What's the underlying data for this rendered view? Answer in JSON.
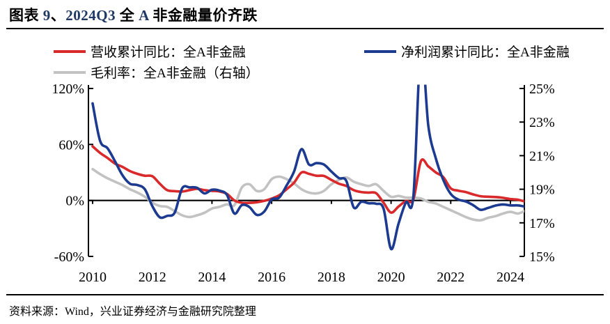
{
  "palette": {
    "text": "#000000",
    "accent_text": "#1F3864",
    "red": "#D9292B",
    "blue": "#1C3A90",
    "gray": "#C2C2C2",
    "axis": "#000000"
  },
  "title": {
    "parts": [
      {
        "text": "图表 ",
        "accent": false
      },
      {
        "text": "9",
        "accent": true
      },
      {
        "text": "、",
        "accent": false
      },
      {
        "text": "2024Q3",
        "accent": true
      },
      {
        "text": " 全 ",
        "accent": false
      },
      {
        "text": "A",
        "accent": true
      },
      {
        "text": " 非金融量价齐跌",
        "accent": false
      }
    ]
  },
  "legend": [
    {
      "label": "营收累计同比：全A非金融",
      "color": "#D9292B"
    },
    {
      "label": "净利润累计同比：全A非金融",
      "color": "#1C3A90"
    },
    {
      "label": "毛利率：全A非金融（右轴）",
      "color": "#C2C2C2"
    }
  ],
  "source": "资料来源：Wind，兴业证券经济与金融研究院整理",
  "chart_data": {
    "type": "line",
    "x_start": 2010,
    "x_step": 0.25,
    "x_axis": {
      "ticks": [
        2010,
        2012,
        2014,
        2016,
        2018,
        2020,
        2022,
        2024
      ],
      "lim": [
        2009.85,
        2024.5
      ]
    },
    "left_axis": {
      "ticks": [
        "120%",
        "60%",
        "0%",
        "-60%"
      ],
      "lim": [
        -60,
        120
      ]
    },
    "right_axis": {
      "ticks": [
        "25%",
        "23%",
        "21%",
        "19%",
        "17%",
        "15%"
      ],
      "lim": [
        15,
        25
      ]
    },
    "grid": false,
    "legend_position": "top",
    "series": [
      {
        "name": "毛利率：全A非金融（右轴）",
        "axis": "right",
        "color": "#C2C2C2",
        "values": [
          20.2,
          19.9,
          19.65,
          19.45,
          19.25,
          19.0,
          18.8,
          18.55,
          18.2,
          18.0,
          17.95,
          17.7,
          17.45,
          17.35,
          17.45,
          17.6,
          17.85,
          17.95,
          18.1,
          18.05,
          19.1,
          19.3,
          18.9,
          19.0,
          19.6,
          19.75,
          19.6,
          19.35,
          19.0,
          18.8,
          18.75,
          18.9,
          19.3,
          19.55,
          19.7,
          19.45,
          19.3,
          19.2,
          19.3,
          18.9,
          18.55,
          18.6,
          18.5,
          18.5,
          18.45,
          18.25,
          18.15,
          17.95,
          17.75,
          17.55,
          17.35,
          17.2,
          17.15,
          17.3,
          17.4,
          17.55,
          17.65,
          17.55,
          17.7
        ]
      },
      {
        "name": "营收累计同比：全A非金融",
        "axis": "left",
        "color": "#D9292B",
        "values": [
          58,
          51,
          45.5,
          39.5,
          36,
          31.5,
          28.5,
          26.5,
          26,
          18,
          11,
          10,
          9.5,
          11,
          12.5,
          11,
          10.3,
          9.7,
          7,
          0,
          -2.5,
          -2.6,
          -2,
          -0.5,
          2,
          5.5,
          12,
          19,
          30,
          28.5,
          26.5,
          26.3,
          22,
          18,
          15.5,
          11,
          9,
          8.4,
          7.8,
          -2.5,
          -13,
          -6.5,
          -0.5,
          1.5,
          42,
          36.5,
          30,
          25,
          13,
          10.5,
          9,
          6.5,
          4.5,
          4,
          3.6,
          2.8,
          1.5,
          0.8,
          -1
        ]
      },
      {
        "name": "净利润累计同比：全A非金融",
        "axis": "left",
        "color": "#1C3A90",
        "values": [
          104,
          64,
          56,
          42,
          27,
          18,
          16.5,
          12,
          -6,
          -18,
          -16.5,
          -13,
          13,
          14,
          13.5,
          7.5,
          11.5,
          10.5,
          6,
          -14,
          -5,
          -7,
          -15.5,
          -12,
          1,
          3,
          16,
          31,
          55,
          38.5,
          40,
          38.5,
          31,
          24,
          21,
          -7.5,
          -1.5,
          -3,
          -3.5,
          -9,
          -52,
          -25,
          -2,
          5,
          165,
          80,
          45,
          22,
          7,
          1,
          -1,
          -5,
          -10,
          -8,
          -5.5,
          -4.3,
          -5.3,
          -5.3,
          -6.5
        ]
      }
    ]
  }
}
